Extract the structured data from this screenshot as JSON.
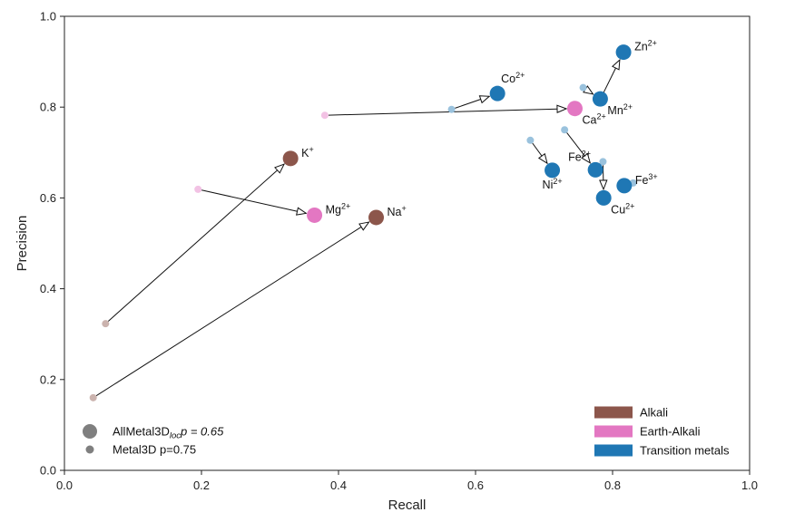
{
  "chart_data": {
    "type": "scatter",
    "xlabel": "Recall",
    "ylabel": "Precision",
    "xlim": [
      0.0,
      1.0
    ],
    "ylim": [
      0.0,
      1.0
    ],
    "xticks": [
      "0.0",
      "0.2",
      "0.4",
      "0.6",
      "0.8",
      "1.0"
    ],
    "yticks": [
      "0.0",
      "0.2",
      "0.4",
      "0.6",
      "0.8",
      "1.0"
    ],
    "grid": false,
    "colors": {
      "alkali": "#8c564b",
      "earth_alkali": "#e377c2",
      "transition": "#1f77b4",
      "legend_marker": "#7f7f7f"
    },
    "category_legend": {
      "position": "bottom-right",
      "entries": [
        {
          "key": "alkali",
          "label": "Alkali"
        },
        {
          "key": "earth_alkali",
          "label": "Earth-Alkali"
        },
        {
          "key": "transition",
          "label": "Transition metals"
        }
      ]
    },
    "method_legend": {
      "position": "bottom-left",
      "entries": [
        {
          "name": "allmetal3d",
          "label_main": "AllMetal3D",
          "label_sub": "loc",
          "label_tail": "p = 0.65",
          "marker": "large"
        },
        {
          "name": "metal3d",
          "label_main": "Metal3D p=0.75",
          "label_sub": "",
          "label_tail": "",
          "marker": "small"
        }
      ]
    },
    "ions": [
      {
        "ion": "K",
        "charge": "+",
        "group": "alkali",
        "metal3d": [
          0.06,
          0.323
        ],
        "allmetal3d": [
          0.33,
          0.687
        ],
        "label_pos": "right"
      },
      {
        "ion": "Na",
        "charge": "+",
        "group": "alkali",
        "metal3d": [
          0.042,
          0.16
        ],
        "allmetal3d": [
          0.455,
          0.557
        ],
        "label_pos": "right"
      },
      {
        "ion": "Mg",
        "charge": "2+",
        "group": "earth_alkali",
        "metal3d": [
          0.195,
          0.619
        ],
        "allmetal3d": [
          0.365,
          0.562
        ],
        "label_pos": "right"
      },
      {
        "ion": "Ca",
        "charge": "2+",
        "group": "earth_alkali",
        "metal3d": [
          0.38,
          0.782
        ],
        "allmetal3d": [
          0.745,
          0.797
        ],
        "label_pos": "below-right"
      },
      {
        "ion": "Co",
        "charge": "2+",
        "group": "transition",
        "metal3d": [
          0.565,
          0.795
        ],
        "allmetal3d": [
          0.632,
          0.83
        ],
        "label_pos": "above"
      },
      {
        "ion": "Zn",
        "charge": "2+",
        "group": "transition",
        "metal3d": [
          0.783,
          0.82
        ],
        "allmetal3d": [
          0.816,
          0.921
        ],
        "label_pos": "right"
      },
      {
        "ion": "Mn",
        "charge": "2+",
        "group": "transition",
        "metal3d": [
          0.757,
          0.843
        ],
        "allmetal3d": [
          0.782,
          0.818
        ],
        "label_pos": "below-right"
      },
      {
        "ion": "Ni",
        "charge": "2+",
        "group": "transition",
        "metal3d": [
          0.68,
          0.727
        ],
        "allmetal3d": [
          0.712,
          0.661
        ],
        "label_pos": "below"
      },
      {
        "ion": "Fe",
        "charge": "2+",
        "group": "transition",
        "metal3d": [
          0.73,
          0.75
        ],
        "allmetal3d": [
          0.775,
          0.662
        ],
        "label_pos": "above-left"
      },
      {
        "ion": "Cu",
        "charge": "2+",
        "group": "transition",
        "metal3d": [
          0.786,
          0.68
        ],
        "allmetal3d": [
          0.787,
          0.6
        ],
        "label_pos": "below-right"
      },
      {
        "ion": "Fe",
        "charge": "3+",
        "group": "transition",
        "metal3d": [
          0.83,
          0.633
        ],
        "allmetal3d": [
          0.817,
          0.627
        ],
        "label_pos": "right"
      }
    ]
  }
}
